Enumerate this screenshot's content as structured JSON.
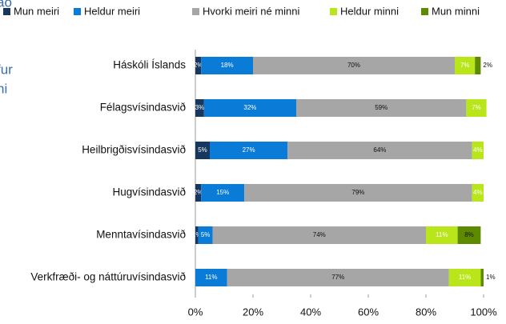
{
  "left_fragments": [
    "ao",
    "fur",
    "ni"
  ],
  "chart_data": {
    "type": "stacked-bar-horizontal",
    "categories": [
      "Háskóli Íslands",
      "Félagsvísindasvið",
      "Heilbrigðisvísindasvið",
      "Hugvísindasvið",
      "Menntavísindasvið",
      "Verkfræði- og náttúruvísindasvið"
    ],
    "series": [
      {
        "name": "Mun meiri",
        "color": "#17375e",
        "values": [
          2,
          3,
          5,
          2,
          1,
          null
        ],
        "value_labels": [
          "2%",
          "3%",
          "5%",
          "2%",
          "1%",
          null
        ]
      },
      {
        "name": "Heldur meiri",
        "color": "#0a7bd6",
        "values": [
          18,
          32,
          27,
          15,
          5,
          11
        ],
        "value_labels": [
          "18%",
          "32%",
          "27%",
          "15%",
          "5%",
          "11%"
        ]
      },
      {
        "name": "Hvorki meiri né minni",
        "color": "#a6a6a6",
        "values": [
          70,
          59,
          64,
          79,
          74,
          77
        ],
        "value_labels": [
          "70%",
          "59%",
          "64%",
          "79%",
          "74%",
          "77%"
        ]
      },
      {
        "name": "Heldur minni",
        "color": "#b8e61a",
        "values": [
          7,
          7,
          4,
          4,
          11,
          11
        ],
        "value_labels": [
          "7%",
          "7%",
          "4%",
          "4%",
          "11%",
          "11%"
        ]
      },
      {
        "name": "Mun minni",
        "color": "#5e8a00",
        "values": [
          2,
          null,
          null,
          null,
          8,
          1
        ],
        "value_labels": [
          "2%",
          null,
          null,
          null,
          "8%",
          "1%"
        ]
      }
    ],
    "xlim": [
      0,
      100
    ],
    "xticks": [
      {
        "value": 0,
        "label": "0%"
      },
      {
        "value": 20,
        "label": "20%"
      },
      {
        "value": 40,
        "label": "40%"
      },
      {
        "value": 60,
        "label": "60%"
      },
      {
        "value": 80,
        "label": "80%"
      },
      {
        "value": 100,
        "label": "100%"
      }
    ],
    "legend": "top"
  }
}
